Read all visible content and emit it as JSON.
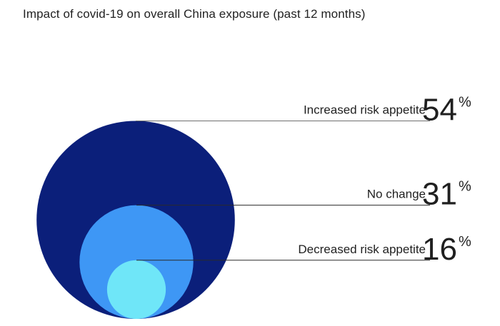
{
  "chart_data": {
    "type": "nested-circle",
    "title": "Impact of covid-19 on overall China exposure (past 12 months)",
    "series": [
      {
        "label": "Increased risk appetite",
        "value": 54,
        "value_text": "54",
        "unit": "%",
        "color": "#0b1f7a"
      },
      {
        "label": "No change",
        "value": 31,
        "value_text": "31",
        "unit": "%",
        "color": "#3e97f5"
      },
      {
        "label": "Decreased risk appetite",
        "value": 16,
        "value_text": "16",
        "unit": "%",
        "color": "#6fe6f8"
      }
    ]
  }
}
